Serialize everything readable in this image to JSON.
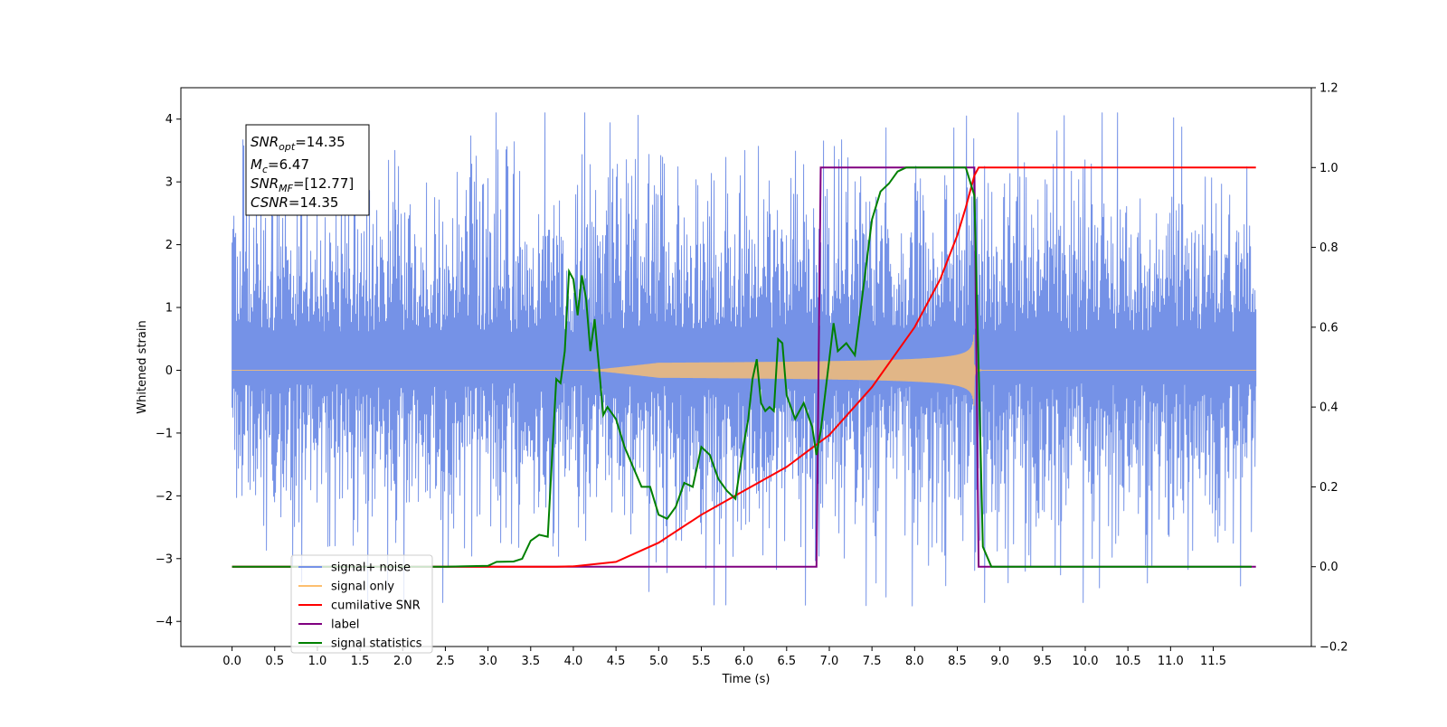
{
  "chart_data": {
    "type": "line",
    "xlabel": "Time (s)",
    "ylabel": "Whitened strain",
    "x_range": [
      0,
      12
    ],
    "xlim": [
      -0.6,
      12.65
    ],
    "ylim_left": [
      -4.4,
      4.5
    ],
    "ylim_right": [
      -0.2,
      1.2
    ],
    "grid": false,
    "legend_position": "lower-left",
    "x_ticks": [
      "0.0",
      "0.5",
      "1.0",
      "1.5",
      "2.0",
      "2.5",
      "3.0",
      "3.5",
      "4.0",
      "4.5",
      "5.0",
      "5.5",
      "6.0",
      "6.5",
      "7.0",
      "7.5",
      "8.0",
      "8.5",
      "9.0",
      "9.5",
      "10.0",
      "10.5",
      "11.0",
      "11.5"
    ],
    "y_ticks_left": [
      "4",
      "3",
      "2",
      "1",
      "0",
      "−1",
      "−2",
      "−3",
      "−4"
    ],
    "y_ticks_right": [
      "1.2",
      "1.0",
      "0.8",
      "0.6",
      "0.4",
      "0.2",
      "0.0",
      "−0.2"
    ],
    "annotation": {
      "lines": [
        {
          "main": "SNR",
          "sub": "opt",
          "rest": "=14.35"
        },
        {
          "main": "M",
          "sub": "c",
          "rest": "=6.47"
        },
        {
          "main": "SNR",
          "sub": "MF",
          "rest": "=[12.77]"
        },
        {
          "main": "CSNR",
          "sub": "",
          "rest": "=14.35"
        }
      ]
    },
    "series": [
      {
        "name": "signal+ noise",
        "color": "#7592e7",
        "axis": "left",
        "noise_envelope": [
          -1.6,
          2.0
        ],
        "noise_peaks_max": 4.1,
        "noise_peaks_min": -3.7
      },
      {
        "name": "signal only",
        "color": "#fdbf6f",
        "axis": "left",
        "chirp_start": 4.2,
        "chirp_merger": 8.7,
        "chirp_peak_amplitude": 1.0
      },
      {
        "name": "cumilative SNR",
        "color": "#ff0000",
        "axis": "right",
        "points": [
          [
            0,
            0
          ],
          [
            3.8,
            0
          ],
          [
            4.0,
            0.001
          ],
          [
            4.5,
            0.012
          ],
          [
            5.0,
            0.06
          ],
          [
            5.5,
            0.13
          ],
          [
            6.0,
            0.19
          ],
          [
            6.5,
            0.25
          ],
          [
            7.0,
            0.33
          ],
          [
            7.5,
            0.45
          ],
          [
            8.0,
            0.6
          ],
          [
            8.3,
            0.72
          ],
          [
            8.5,
            0.83
          ],
          [
            8.6,
            0.9
          ],
          [
            8.7,
            0.98
          ],
          [
            8.75,
            1.0
          ],
          [
            12,
            1.0
          ]
        ]
      },
      {
        "name": "label",
        "color": "#800080",
        "axis": "right",
        "points": [
          [
            0,
            0
          ],
          [
            6.85,
            0
          ],
          [
            6.9,
            1.0
          ],
          [
            8.7,
            1.0
          ],
          [
            8.75,
            0
          ],
          [
            12,
            0
          ]
        ]
      },
      {
        "name": "signal statistics",
        "color": "#008000",
        "axis": "right",
        "points": [
          [
            0,
            0
          ],
          [
            2.5,
            0
          ],
          [
            3.0,
            0.002
          ],
          [
            3.1,
            0.012
          ],
          [
            3.3,
            0.013
          ],
          [
            3.4,
            0.02
          ],
          [
            3.5,
            0.065
          ],
          [
            3.6,
            0.08
          ],
          [
            3.7,
            0.075
          ],
          [
            3.8,
            0.47
          ],
          [
            3.85,
            0.46
          ],
          [
            3.9,
            0.54
          ],
          [
            3.95,
            0.74
          ],
          [
            4.0,
            0.72
          ],
          [
            4.05,
            0.63
          ],
          [
            4.1,
            0.73
          ],
          [
            4.15,
            0.67
          ],
          [
            4.2,
            0.54
          ],
          [
            4.25,
            0.62
          ],
          [
            4.3,
            0.5
          ],
          [
            4.35,
            0.38
          ],
          [
            4.4,
            0.4
          ],
          [
            4.5,
            0.37
          ],
          [
            4.6,
            0.3
          ],
          [
            4.7,
            0.25
          ],
          [
            4.8,
            0.2
          ],
          [
            4.9,
            0.2
          ],
          [
            5.0,
            0.13
          ],
          [
            5.1,
            0.12
          ],
          [
            5.2,
            0.15
          ],
          [
            5.3,
            0.21
          ],
          [
            5.4,
            0.2
          ],
          [
            5.5,
            0.3
          ],
          [
            5.6,
            0.28
          ],
          [
            5.7,
            0.22
          ],
          [
            5.8,
            0.19
          ],
          [
            5.9,
            0.17
          ],
          [
            6.0,
            0.31
          ],
          [
            6.05,
            0.37
          ],
          [
            6.1,
            0.47
          ],
          [
            6.15,
            0.52
          ],
          [
            6.2,
            0.41
          ],
          [
            6.25,
            0.39
          ],
          [
            6.3,
            0.4
          ],
          [
            6.35,
            0.39
          ],
          [
            6.4,
            0.57
          ],
          [
            6.45,
            0.56
          ],
          [
            6.5,
            0.43
          ],
          [
            6.6,
            0.37
          ],
          [
            6.7,
            0.41
          ],
          [
            6.8,
            0.35
          ],
          [
            6.85,
            0.28
          ],
          [
            6.9,
            0.34
          ],
          [
            7.0,
            0.52
          ],
          [
            7.05,
            0.61
          ],
          [
            7.1,
            0.54
          ],
          [
            7.2,
            0.56
          ],
          [
            7.3,
            0.53
          ],
          [
            7.4,
            0.7
          ],
          [
            7.5,
            0.87
          ],
          [
            7.6,
            0.94
          ],
          [
            7.7,
            0.96
          ],
          [
            7.8,
            0.99
          ],
          [
            7.9,
            1.0
          ],
          [
            8.5,
            1.0
          ],
          [
            8.6,
            1.0
          ],
          [
            8.7,
            0.93
          ],
          [
            8.75,
            0.5
          ],
          [
            8.8,
            0.05
          ],
          [
            8.9,
            0.0
          ],
          [
            11.95,
            0.0
          ]
        ]
      }
    ]
  }
}
